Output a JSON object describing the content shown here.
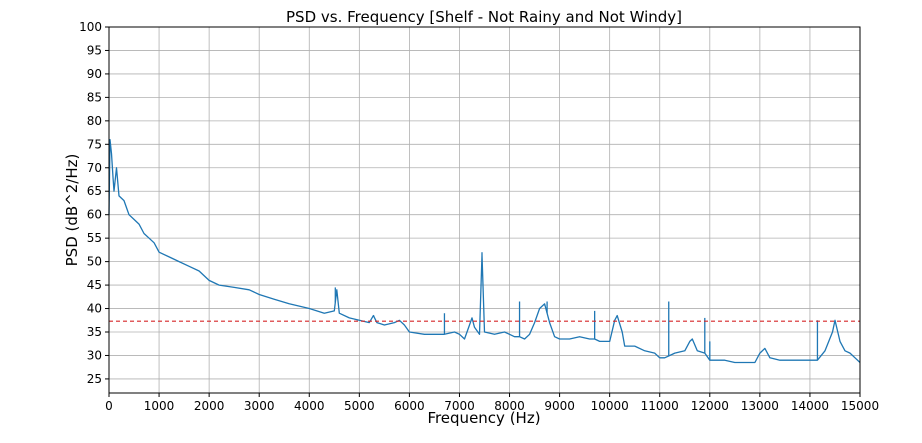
{
  "chart_data": {
    "type": "line",
    "title": "PSD vs. Frequency [Shelf - Not Rainy and Not Windy]",
    "xlabel": "Frequency (Hz)",
    "ylabel": "PSD (dB^2/Hz)",
    "xlim": [
      0,
      15000
    ],
    "ylim": [
      22,
      100
    ],
    "xticks": [
      0,
      1000,
      2000,
      3000,
      4000,
      5000,
      6000,
      7000,
      8000,
      9000,
      10000,
      11000,
      12000,
      13000,
      14000,
      15000
    ],
    "yticks": [
      25,
      30,
      35,
      40,
      45,
      50,
      55,
      60,
      65,
      70,
      75,
      80,
      85,
      90,
      95,
      100
    ],
    "grid": true,
    "series": [
      {
        "color": "#1f77b4",
        "style": "solid",
        "x": [
          0,
          20,
          50,
          80,
          100,
          150,
          200,
          300,
          400,
          500,
          600,
          700,
          800,
          900,
          1000,
          1200,
          1400,
          1600,
          1800,
          2000,
          2200,
          2500,
          2800,
          3000,
          3300,
          3600,
          4000,
          4300,
          4500,
          4550,
          4600,
          4800,
          5000,
          5200,
          5280,
          5350,
          5500,
          5700,
          5800,
          5900,
          6000,
          6300,
          6500,
          6700,
          6900,
          7000,
          7100,
          7200,
          7250,
          7300,
          7400,
          7450,
          7500,
          7700,
          7900,
          8000,
          8100,
          8200,
          8300,
          8400,
          8500,
          8600,
          8700,
          8800,
          8900,
          9000,
          9200,
          9400,
          9600,
          9700,
          9800,
          10000,
          10100,
          10150,
          10250,
          10300,
          10500,
          10700,
          10900,
          11000,
          11100,
          11200,
          11300,
          11500,
          11600,
          11650,
          11750,
          11900,
          12000,
          12100,
          12300,
          12500,
          12700,
          12900,
          13000,
          13100,
          13200,
          13400,
          13600,
          13800,
          14000,
          14150,
          14300,
          14450,
          14500,
          14600,
          14700,
          14800,
          14900,
          15000
        ],
        "y": [
          60,
          76,
          73,
          68,
          65,
          70,
          64,
          63,
          60,
          59,
          58,
          56,
          55,
          54,
          52,
          51,
          50,
          49,
          48,
          46,
          45,
          44.5,
          44,
          43,
          42,
          41,
          40,
          39,
          39.5,
          44,
          39,
          38,
          37.5,
          37,
          38.5,
          37,
          36.5,
          37,
          37.5,
          36.5,
          35,
          34.5,
          34.5,
          34.5,
          35,
          34.5,
          33.5,
          36.5,
          38,
          36,
          34.5,
          51.5,
          35,
          34.5,
          35,
          34.5,
          34,
          34,
          33.5,
          34.5,
          37,
          40,
          41,
          37,
          34,
          33.5,
          33.5,
          34,
          33.5,
          33.5,
          33,
          33,
          37.5,
          38.5,
          35,
          32,
          32,
          31,
          30.5,
          29.5,
          29.5,
          30,
          30.5,
          31,
          33,
          33.5,
          31,
          30.5,
          29,
          29,
          29,
          28.5,
          28.5,
          28.5,
          30.5,
          31.5,
          29.5,
          29,
          29,
          29,
          29,
          29,
          31,
          35,
          37.5,
          33,
          31,
          30.5,
          29.5,
          28.5
        ]
      }
    ],
    "spikes": [
      {
        "x": 4520,
        "y": 44.5
      },
      {
        "x": 5290,
        "y": 38.5
      },
      {
        "x": 6700,
        "y": 39
      },
      {
        "x": 7450,
        "y": 52
      },
      {
        "x": 8200,
        "y": 41.5
      },
      {
        "x": 8750,
        "y": 41.5
      },
      {
        "x": 9700,
        "y": 39.5
      },
      {
        "x": 11180,
        "y": 41.5
      },
      {
        "x": 11900,
        "y": 38
      },
      {
        "x": 12000,
        "y": 33
      },
      {
        "x": 14150,
        "y": 37.5
      }
    ],
    "reference_line": {
      "y": 37.3,
      "color": "#d62728",
      "style": "dashed"
    }
  }
}
